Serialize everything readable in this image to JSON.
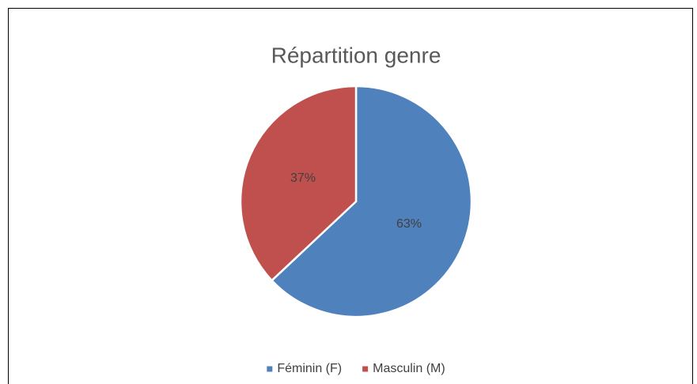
{
  "chart_data": {
    "type": "pie",
    "title": "Répartition genre",
    "categories": [
      "Féminin (F)",
      "Masculin (M)"
    ],
    "values": [
      63,
      37
    ],
    "value_labels": [
      "63%",
      "37%"
    ],
    "colors": [
      "#4f81bd",
      "#c0504d"
    ],
    "legend": "bottom"
  }
}
